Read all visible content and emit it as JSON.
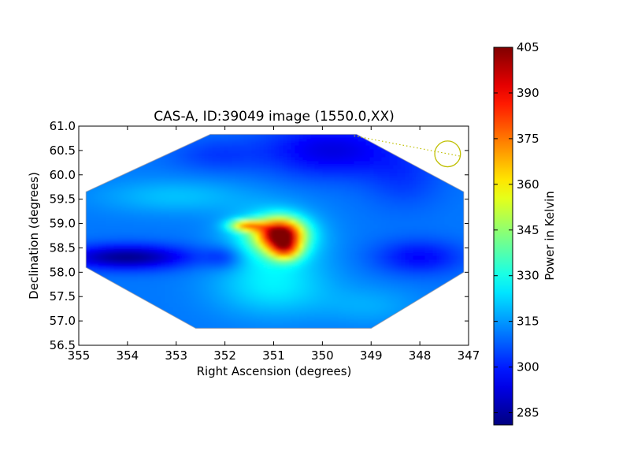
{
  "chart_data": {
    "type": "heatmap",
    "title": "CAS-A, ID:39049 image (1550.0,XX)",
    "xlabel": "Right Ascension (degrees)",
    "ylabel": "Declination (degrees)",
    "xlim": [
      355,
      347
    ],
    "ylim": [
      56.5,
      61.0
    ],
    "x_ticks": [
      "355",
      "354",
      "353",
      "352",
      "351",
      "350",
      "349",
      "348",
      "347"
    ],
    "y_ticks": [
      "56.5",
      "57.0",
      "57.5",
      "58.0",
      "58.5",
      "59.0",
      "59.5",
      "60.0",
      "60.5",
      "61.0"
    ],
    "colorbar": {
      "label": "Power in Kelvin",
      "range": [
        281,
        405
      ],
      "ticks": [
        "285",
        "300",
        "315",
        "330",
        "345",
        "360",
        "375",
        "390",
        "405"
      ],
      "colormap": "jet"
    },
    "coverage_polygon": [
      [
        352.3,
        60.83
      ],
      [
        349.3,
        60.83
      ],
      [
        347.1,
        59.65
      ],
      [
        347.1,
        58.0
      ],
      [
        349.0,
        56.85
      ],
      [
        352.6,
        56.85
      ],
      [
        354.85,
        58.1
      ],
      [
        354.85,
        59.65
      ]
    ],
    "features": [
      {
        "ra": 350.85,
        "dec": 58.78,
        "power": 403,
        "description": "peak"
      },
      {
        "ra": 351.5,
        "dec": 58.95,
        "power": 385
      },
      {
        "ra": 350.7,
        "dec": 58.5,
        "power": 375
      },
      {
        "ra": 351.0,
        "dec": 57.9,
        "power": 325
      },
      {
        "ra": 353.0,
        "dec": 59.5,
        "power": 318
      },
      {
        "ra": 354.3,
        "dec": 58.3,
        "power": 284
      },
      {
        "ra": 349.8,
        "dec": 60.5,
        "power": 292
      },
      {
        "ra": 348.0,
        "dec": 58.3,
        "power": 300
      }
    ],
    "beam": {
      "ra": 347.43,
      "dec": 60.43,
      "radius_deg": 0.33,
      "color": "#bfbf00"
    },
    "beam_line": [
      [
        349.35,
        60.8
      ],
      [
        347.15,
        60.38
      ]
    ]
  }
}
